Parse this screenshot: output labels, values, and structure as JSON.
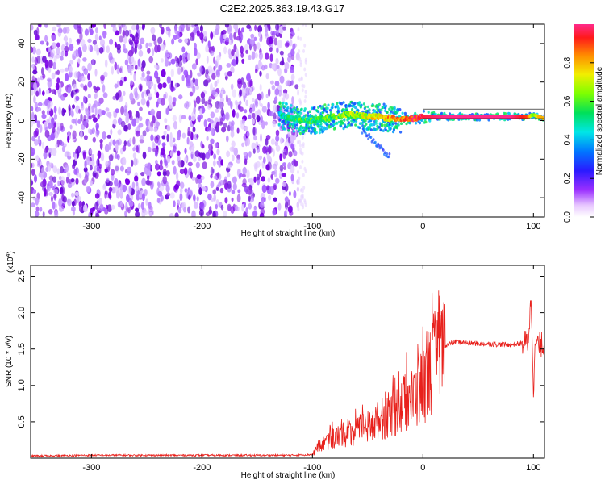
{
  "title": "C2E2.2025.363.19.43.G17",
  "colors": {
    "signal": "#e8211c",
    "axis": "#000000",
    "speckle": "#7a00e6",
    "background": "#ffffff"
  },
  "chart_data": [
    {
      "type": "heatmap",
      "name": "spectrogram",
      "xlabel": "Height of straight line (km)",
      "ylabel": "Frequency (Hz)",
      "xlim": [
        -355,
        110
      ],
      "ylim": [
        -50,
        50
      ],
      "xticks": [
        -300,
        -200,
        -100,
        0,
        100
      ],
      "xtick_labels": [
        "-300",
        "-200",
        "-100",
        "0",
        "100"
      ],
      "yticks": [
        -40,
        -20,
        0,
        20,
        40
      ],
      "ytick_labels": [
        "-40",
        "-20",
        "0",
        "20",
        "40"
      ],
      "noise_region_x": [
        -355,
        -113
      ],
      "ridge": {
        "x": [
          -130,
          -120,
          -110,
          -100,
          -90,
          -80,
          -70,
          -60,
          -50,
          -40,
          -30,
          -20,
          -10,
          0,
          20,
          40,
          60,
          80,
          95,
          100,
          105,
          110
        ],
        "freq": [
          3,
          1,
          0,
          0,
          1,
          2,
          3,
          3,
          2,
          2,
          1,
          1,
          1,
          2,
          2,
          2,
          2,
          2,
          2,
          3,
          2,
          1
        ],
        "amplitude": [
          0.45,
          0.5,
          0.55,
          0.55,
          0.6,
          0.6,
          0.65,
          0.65,
          0.7,
          0.75,
          0.8,
          0.85,
          0.9,
          0.95,
          1.0,
          1.0,
          1.0,
          1.0,
          0.9,
          0.6,
          0.8,
          0.8
        ]
      },
      "colorbar": {
        "label": "Normalized spectral amplitude",
        "range": [
          0,
          1
        ],
        "ticks": [
          0.0,
          0.2,
          0.4,
          0.6,
          0.8
        ],
        "tick_labels": [
          "0.0",
          "0.2",
          "0.4",
          "0.6",
          "0.8"
        ]
      }
    },
    {
      "type": "line",
      "name": "snr",
      "xlabel": "Height of straight line (km)",
      "ylabel": "SNR (10 * v/v)",
      "exponent_label": "(x10",
      "exponent_power": "4",
      "exponent_close": ")",
      "xlim": [
        -355,
        110
      ],
      "ylim": [
        0,
        26500
      ],
      "xticks": [
        -300,
        -200,
        -100,
        0,
        100
      ],
      "xtick_labels": [
        "-300",
        "-200",
        "-100",
        "0",
        "100"
      ],
      "yticks": [
        5000,
        10000,
        15000,
        20000,
        25000
      ],
      "ytick_labels": [
        "0.5",
        "1.0",
        "1.5",
        "2.0",
        "2.5"
      ],
      "series": [
        {
          "name": "SNR",
          "x": [
            -355,
            -300,
            -200,
            -120,
            -100,
            -95,
            -90,
            -80,
            -70,
            -60,
            -50,
            -40,
            -30,
            -20,
            -15,
            -10,
            -5,
            0,
            5,
            10,
            15,
            20,
            30,
            40,
            60,
            80,
            90,
            95,
            98,
            100,
            102,
            105,
            110
          ],
          "y": [
            300,
            400,
            400,
            400,
            500,
            1500,
            2000,
            2800,
            3300,
            3800,
            4200,
            5200,
            6000,
            7000,
            8000,
            8000,
            9000,
            10000,
            12000,
            13000,
            14500,
            15500,
            16000,
            15800,
            15700,
            15600,
            15800,
            16000,
            22000,
            10000,
            16000,
            15500,
            15800
          ]
        }
      ]
    }
  ]
}
